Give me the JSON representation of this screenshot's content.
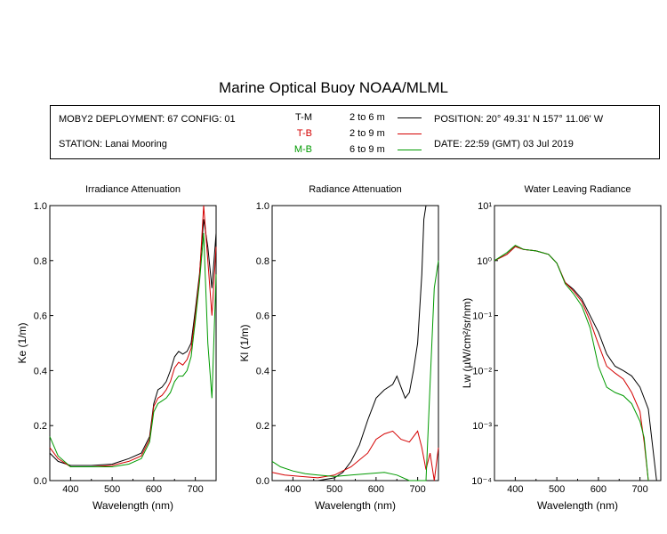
{
  "title": "Marine Optical Buoy NOAA/MLML",
  "info": {
    "deployment": "MOBY2 DEPLOYMENT: 67 CONFIG: 01",
    "station": "STATION: Lanai Mooring",
    "position": "POSITION: 20° 49.31' N   157° 11.06' W",
    "date": "DATE: 22:59 (GMT) 03 Jul 2019"
  },
  "legend": [
    {
      "code": "T-M",
      "range": "2 to 6  m",
      "color": "#000000"
    },
    {
      "code": "T-B",
      "range": "2 to 9  m",
      "color": "#d40000"
    },
    {
      "code": "M-B",
      "range": "6 to 9  m",
      "color": "#009a00"
    }
  ],
  "chart_data": [
    {
      "type": "line",
      "title": "Irradiance Attenuation",
      "xlabel": "Wavelength (nm)",
      "ylabel": "Ke  (1/m)",
      "xlim": [
        350,
        750
      ],
      "ylim": [
        0,
        1.0
      ],
      "xticks": [
        400,
        500,
        600,
        700
      ],
      "xtick_labels": [
        "400",
        "500",
        "600",
        "700"
      ],
      "yticks": [
        0,
        0.2,
        0.4,
        0.6,
        0.8,
        1.0
      ],
      "ytick_labels": [
        "0.0",
        "0.2",
        "0.4",
        "0.6",
        "0.8",
        "1.0"
      ],
      "series": [
        {
          "name": "T-M",
          "color": "#000000",
          "x": [
            350,
            370,
            400,
            450,
            500,
            540,
            570,
            590,
            600,
            610,
            620,
            630,
            640,
            650,
            660,
            670,
            680,
            690,
            700,
            710,
            720,
            730,
            740,
            750
          ],
          "y": [
            0.1,
            0.07,
            0.055,
            0.055,
            0.06,
            0.08,
            0.1,
            0.16,
            0.28,
            0.33,
            0.34,
            0.36,
            0.4,
            0.45,
            0.47,
            0.46,
            0.47,
            0.5,
            0.62,
            0.75,
            0.95,
            0.85,
            0.7,
            0.9
          ]
        },
        {
          "name": "T-B",
          "color": "#d40000",
          "x": [
            350,
            370,
            400,
            450,
            500,
            540,
            570,
            590,
            600,
            610,
            620,
            630,
            640,
            650,
            660,
            670,
            680,
            690,
            700,
            710,
            720,
            730,
            740,
            750
          ],
          "y": [
            0.12,
            0.08,
            0.05,
            0.05,
            0.055,
            0.07,
            0.09,
            0.15,
            0.27,
            0.3,
            0.31,
            0.33,
            0.36,
            0.41,
            0.43,
            0.42,
            0.44,
            0.48,
            0.6,
            0.74,
            1.0,
            0.8,
            0.6,
            0.85
          ]
        },
        {
          "name": "M-B",
          "color": "#009a00",
          "x": [
            350,
            370,
            400,
            450,
            500,
            540,
            570,
            590,
            600,
            610,
            620,
            630,
            640,
            650,
            660,
            670,
            680,
            690,
            700,
            710,
            720,
            730,
            740,
            750
          ],
          "y": [
            0.16,
            0.09,
            0.05,
            0.05,
            0.05,
            0.06,
            0.08,
            0.14,
            0.25,
            0.28,
            0.29,
            0.3,
            0.32,
            0.36,
            0.38,
            0.38,
            0.4,
            0.45,
            0.58,
            0.72,
            0.9,
            0.5,
            0.3,
            0.75
          ]
        }
      ]
    },
    {
      "type": "line",
      "title": "Radiance Attenuation",
      "xlabel": "Wavelength (nm)",
      "ylabel": "Kl  (1/m)",
      "xlim": [
        350,
        750
      ],
      "ylim": [
        0,
        1.0
      ],
      "xticks": [
        400,
        500,
        600,
        700
      ],
      "xtick_labels": [
        "400",
        "500",
        "600",
        "700"
      ],
      "yticks": [
        0,
        0.2,
        0.4,
        0.6,
        0.8,
        1.0
      ],
      "ytick_labels": [
        "0.0",
        "0.2",
        "0.4",
        "0.6",
        "0.8",
        "1.0"
      ],
      "series": [
        {
          "name": "T-M",
          "color": "#000000",
          "x": [
            350,
            380,
            420,
            460,
            500,
            520,
            540,
            560,
            580,
            600,
            620,
            640,
            650,
            660,
            670,
            680,
            690,
            700,
            710,
            715,
            720
          ],
          "y": [
            0.0,
            0.0,
            0.0,
            0.0,
            0.01,
            0.03,
            0.07,
            0.13,
            0.22,
            0.3,
            0.33,
            0.35,
            0.38,
            0.34,
            0.3,
            0.32,
            0.4,
            0.5,
            0.75,
            0.95,
            1.0
          ]
        },
        {
          "name": "T-B",
          "color": "#d40000",
          "x": [
            350,
            380,
            420,
            460,
            500,
            540,
            580,
            600,
            620,
            640,
            660,
            680,
            700,
            710,
            720,
            730,
            740,
            750
          ],
          "y": [
            0.03,
            0.02,
            0.015,
            0.01,
            0.02,
            0.05,
            0.1,
            0.15,
            0.17,
            0.18,
            0.15,
            0.14,
            0.18,
            0.12,
            0.04,
            0.1,
            0.0,
            0.12
          ]
        },
        {
          "name": "M-B",
          "color": "#009a00",
          "x": [
            350,
            370,
            400,
            430,
            460,
            500,
            540,
            580,
            620,
            650,
            680,
            700,
            720,
            730,
            740,
            750
          ],
          "y": [
            0.07,
            0.05,
            0.035,
            0.025,
            0.02,
            0.015,
            0.02,
            0.025,
            0.03,
            0.02,
            0.0,
            0.0,
            0.0,
            0.35,
            0.7,
            0.8
          ]
        }
      ]
    },
    {
      "type": "line",
      "title": "Water Leaving Radiance",
      "xlabel": "Wavelength (nm)",
      "ylabel": "Lw  (µW/cm²/sr/nm)",
      "xlim": [
        350,
        750
      ],
      "ylim": [
        0.0001,
        10
      ],
      "log_y": true,
      "xticks": [
        400,
        500,
        600,
        700
      ],
      "xtick_labels": [
        "400",
        "500",
        "600",
        "700"
      ],
      "yticks": [
        0.0001,
        0.001,
        0.01,
        0.1,
        1,
        10
      ],
      "ytick_labels": [
        "10⁻⁴",
        "10⁻³",
        "10⁻²",
        "10⁻¹",
        "10⁰",
        "10¹"
      ],
      "series": [
        {
          "name": "T-M",
          "color": "#000000",
          "x": [
            350,
            380,
            400,
            420,
            450,
            480,
            500,
            520,
            540,
            560,
            580,
            600,
            620,
            640,
            660,
            680,
            700,
            720,
            740
          ],
          "y": [
            1.0,
            1.3,
            1.8,
            1.6,
            1.5,
            1.3,
            0.9,
            0.4,
            0.3,
            0.2,
            0.1,
            0.05,
            0.02,
            0.012,
            0.01,
            0.008,
            0.005,
            0.002,
            0.0001
          ]
        },
        {
          "name": "T-B",
          "color": "#d40000",
          "x": [
            350,
            380,
            400,
            420,
            450,
            480,
            500,
            520,
            540,
            560,
            580,
            600,
            620,
            640,
            660,
            680,
            700,
            710,
            720
          ],
          "y": [
            1.0,
            1.3,
            1.8,
            1.6,
            1.5,
            1.3,
            0.9,
            0.4,
            0.28,
            0.18,
            0.08,
            0.03,
            0.012,
            0.009,
            0.007,
            0.004,
            0.0018,
            0.0005,
            0.0001
          ]
        },
        {
          "name": "M-B",
          "color": "#009a00",
          "x": [
            350,
            380,
            400,
            420,
            450,
            480,
            500,
            520,
            540,
            560,
            580,
            600,
            620,
            640,
            660,
            680,
            700,
            710,
            720
          ],
          "y": [
            1.0,
            1.4,
            1.9,
            1.6,
            1.5,
            1.3,
            0.9,
            0.38,
            0.25,
            0.15,
            0.06,
            0.012,
            0.005,
            0.004,
            0.0035,
            0.0025,
            0.0012,
            0.0006,
            0.0001
          ]
        }
      ]
    }
  ]
}
